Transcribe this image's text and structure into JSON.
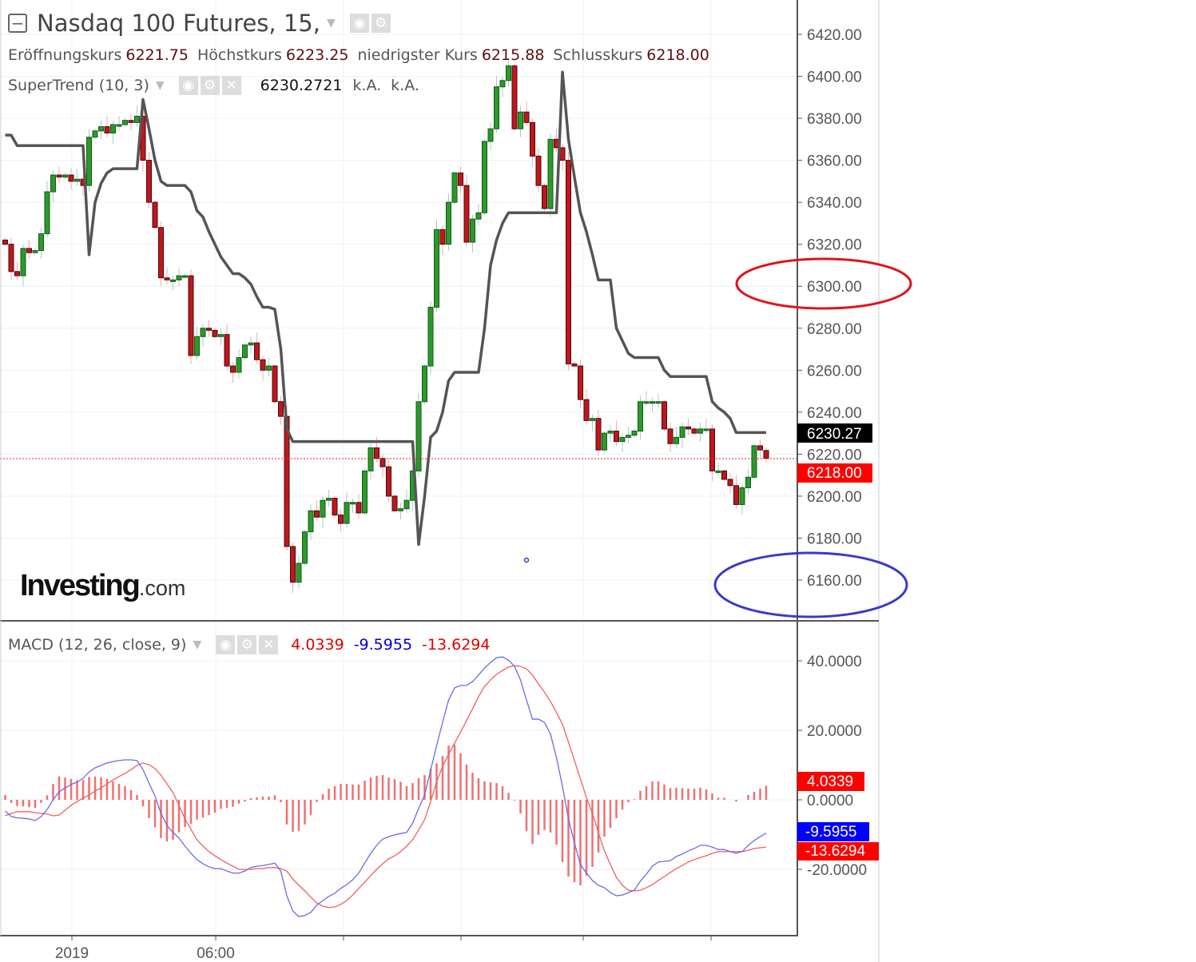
{
  "header": {
    "title": "Nasdaq 100 Futures, 15,",
    "ohlc": [
      {
        "label": "Eröffnungskurs",
        "value": "6221.75"
      },
      {
        "label": "Höchstkurs",
        "value": "6223.25"
      },
      {
        "label": "niedrigster Kurs",
        "value": "6215.88"
      },
      {
        "label": "Schlusskurs",
        "value": "6218.00"
      }
    ]
  },
  "supertrend": {
    "name": "SuperTrend (10, 3)",
    "value": "6230.2721",
    "extra1": "k.A.",
    "extra2": "k.A."
  },
  "macd_legend": {
    "name": "MACD (12, 26, close, 9)",
    "histogram": "4.0339",
    "macd": "-9.5955",
    "signal": "-13.6294"
  },
  "logo": {
    "brand": "Investing",
    "suffix": ".com"
  },
  "price_axis": [
    "6420.00",
    "6400.00",
    "6380.00",
    "6360.00",
    "6340.00",
    "6320.00",
    "6300.00",
    "6280.00",
    "6260.00",
    "6240.00",
    "6220.00",
    "6200.00",
    "6180.00",
    "6160.00"
  ],
  "price_badges": {
    "supertrend": "6230.27",
    "last": "6218.00"
  },
  "macd_axis": [
    "40.0000",
    "20.0000",
    "0.0000",
    "-20.0000"
  ],
  "macd_badges": {
    "histogram": "4.0339",
    "macd": "-9.5955",
    "signal": "-13.6294"
  },
  "x_axis": [
    "2019",
    "06:00"
  ],
  "colors": {
    "up": "#2a9a2a",
    "down": "#c0161c",
    "supertrend": "#555555",
    "macd": "#6b6be8",
    "signal": "#f06060",
    "histogram": "#f07070",
    "annotation_red": "#e0141e",
    "annotation_blue": "#3a3ac8"
  },
  "chart_data": [
    {
      "type": "candlestick",
      "interval": "15",
      "ylim": [
        6150,
        6430
      ],
      "last_open": 6221.75,
      "last_high": 6223.25,
      "last_low": 6215.88,
      "close": [
        6320,
        6307,
        6305,
        6318,
        6316,
        6317,
        6325,
        6345,
        6353,
        6352,
        6353,
        6350,
        6351,
        6348,
        6371,
        6374,
        6376,
        6373,
        6377,
        6377,
        6379,
        6378,
        6381,
        6360,
        6340,
        6328,
        6304,
        6303,
        6303,
        6305,
        6305,
        6267,
        6276,
        6280,
        6279,
        6276,
        6277,
        6262,
        6259,
        6266,
        6272,
        6273,
        6265,
        6260,
        6262,
        6245,
        6238,
        6176,
        6159,
        6168,
        6183,
        6193,
        6190,
        6198,
        6199,
        6191,
        6187,
        6197,
        6197,
        6192,
        6212,
        6223,
        6218,
        6214,
        6200,
        6193,
        6194,
        6198,
        6212,
        6245,
        6262,
        6290,
        6327,
        6320,
        6340,
        6354,
        6348,
        6321,
        6332,
        6335,
        6369,
        6375,
        6395,
        6398,
        6405,
        6375,
        6383,
        6378,
        6362,
        6348,
        6337,
        6370,
        6366,
        6360,
        6263,
        6262,
        6246,
        6236,
        6237,
        6222,
        6230,
        6231,
        6226,
        6228,
        6229,
        6231,
        6245,
        6245,
        6245,
        6245,
        6232,
        6225,
        6228,
        6233,
        6232,
        6230,
        6232,
        6232,
        6212,
        6212,
        6208,
        6205,
        6196,
        6204,
        6209,
        6224,
        6222,
        6218
      ],
      "supertrend": [
        6372,
        6372,
        6367,
        6367,
        6367,
        6367,
        6367,
        6367,
        6367,
        6367,
        6367,
        6367,
        6367,
        6367,
        6315,
        6340,
        6349,
        6354,
        6356,
        6356,
        6356,
        6356,
        6356,
        6389,
        6375,
        6360,
        6350,
        6348,
        6348,
        6348,
        6348,
        6345,
        6336,
        6333,
        6326,
        6320,
        6314,
        6310,
        6306,
        6306,
        6304,
        6301,
        6295,
        6290,
        6290,
        6289,
        6270,
        6232,
        6226,
        6226,
        6226,
        6226,
        6226,
        6226,
        6226,
        6226,
        6226,
        6226,
        6226,
        6226,
        6226,
        6226,
        6226,
        6226,
        6226,
        6226,
        6226,
        6226,
        6226,
        6177,
        6200,
        6228,
        6231,
        6240,
        6255,
        6259,
        6259,
        6259,
        6259,
        6259,
        6280,
        6310,
        6322,
        6330,
        6335,
        6335,
        6335,
        6335,
        6335,
        6335,
        6335,
        6335,
        6335,
        6402,
        6370,
        6352,
        6335,
        6326,
        6315,
        6303,
        6303,
        6303,
        6280,
        6274,
        6268,
        6266,
        6266,
        6266,
        6266,
        6266,
        6260,
        6257,
        6257,
        6257,
        6257,
        6257,
        6257,
        6257,
        6245,
        6242,
        6240,
        6237,
        6230.27,
        6230.27,
        6230.27,
        6230.27,
        6230.27,
        6230.27
      ],
      "annotations": [
        {
          "shape": "ellipse",
          "color": "red",
          "around": 6300
        },
        {
          "shape": "ellipse",
          "color": "blue",
          "around": 6160
        }
      ]
    },
    {
      "type": "line",
      "ylim": [
        -40,
        45
      ],
      "series": [
        {
          "name": "MACD",
          "values": [
            -3.2,
            -4.8,
            -5.2,
            -5.3,
            -5.5,
            -6.0,
            -4.8,
            -2.8,
            0,
            2.3,
            3.4,
            4.4,
            5.1,
            6.2,
            8.0,
            9.2,
            9.9,
            10.6,
            11.0,
            11.3,
            11.5,
            11.5,
            11.3,
            8.7,
            4.8,
            1.1,
            -3.9,
            -7.4,
            -9.4,
            -11.0,
            -13.3,
            -15.4,
            -17.2,
            -18.4,
            -19.3,
            -19.8,
            -19.8,
            -20.5,
            -21.1,
            -21.1,
            -20.5,
            -19.5,
            -19.1,
            -18.9,
            -18.6,
            -18.2,
            -20.5,
            -27.6,
            -32.0,
            -33.6,
            -33.3,
            -32.4,
            -30.3,
            -29.0,
            -27.8,
            -26.9,
            -25.5,
            -24.4,
            -23.0,
            -21.1,
            -18.2,
            -15.4,
            -13.1,
            -11.3,
            -10.6,
            -10.1,
            -9.7,
            -9.4,
            -6.7,
            -2.5,
            1.4,
            8.5,
            15.6,
            22.3,
            28.7,
            32.2,
            32.9,
            32.9,
            34.0,
            35.9,
            37.9,
            39.5,
            40.9,
            41.1,
            40.2,
            38.4,
            34.5,
            28.7,
            23.2,
            23.2,
            22.3,
            18.9,
            12.2,
            3.9,
            -5.5,
            -12.4,
            -18.6,
            -21.1,
            -23.2,
            -24.6,
            -25.3,
            -26.7,
            -27.6,
            -27.4,
            -26.7,
            -26.0,
            -23.4,
            -21.4,
            -19.1,
            -17.9,
            -17.7,
            -17.5,
            -16.3,
            -15.6,
            -14.7,
            -14.0,
            -13.1,
            -13.1,
            -13.6,
            -14.3,
            -14.3,
            -14.9,
            -15.4,
            -14.9,
            -13.1,
            -11.7,
            -10.6,
            -9.5955
          ]
        },
        {
          "name": "Signal",
          "values": [
            -4.6,
            -3.9,
            -3.4,
            -3.4,
            -3.4,
            -3.7,
            -3.9,
            -4.1,
            -4.6,
            -4.4,
            -3.0,
            -1.6,
            -0.5,
            0.5,
            1.4,
            2.5,
            3.4,
            4.6,
            5.7,
            6.7,
            7.6,
            8.7,
            9.9,
            10.6,
            10.1,
            9.0,
            7.1,
            4.6,
            2.1,
            -1.6,
            -5.5,
            -8.5,
            -11.5,
            -13.3,
            -14.9,
            -16.1,
            -17.2,
            -18.2,
            -19.1,
            -20.0,
            -20.0,
            -20.0,
            -19.8,
            -19.8,
            -19.5,
            -19.5,
            -19.8,
            -20.5,
            -22.8,
            -24.6,
            -26.2,
            -28.0,
            -29.7,
            -30.6,
            -31.0,
            -30.8,
            -30.1,
            -29.0,
            -27.4,
            -25.5,
            -23.7,
            -21.8,
            -20.0,
            -18.4,
            -17.0,
            -16.1,
            -14.9,
            -13.3,
            -11.5,
            -8.7,
            -5.7,
            -0.5,
            5.1,
            9.7,
            13.1,
            16.3,
            19.5,
            22.8,
            26.2,
            29.7,
            32.6,
            34.5,
            36.1,
            37.2,
            38.2,
            38.6,
            38.4,
            37.7,
            35.9,
            33.3,
            31.0,
            28.3,
            25.1,
            21.8,
            16.6,
            11.3,
            6.0,
            0.7,
            -3.9,
            -9.4,
            -14.7,
            -18.6,
            -22.3,
            -24.6,
            -26.0,
            -26.2,
            -26.0,
            -25.3,
            -24.4,
            -23.2,
            -22.1,
            -20.9,
            -19.8,
            -18.9,
            -17.9,
            -17.2,
            -16.6,
            -16.1,
            -15.4,
            -14.9,
            -14.9,
            -14.9,
            -14.9,
            -14.9,
            -14.5,
            -14.0,
            -13.8,
            -13.6294
          ]
        }
      ]
    }
  ]
}
